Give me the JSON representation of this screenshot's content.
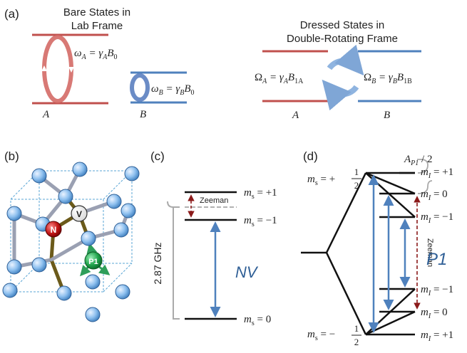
{
  "panel_a": {
    "label": "(a)",
    "lab": {
      "title_line1": "Bare States in",
      "title_line2": "Lab Frame",
      "level_a": "A",
      "level_b": "B",
      "eq_a": {
        "lhs": "ω",
        "lhs_sub": "A",
        "mid": " = γ",
        "mid_sub": "A",
        "rhs": "B",
        "rhs_sub": "0"
      },
      "eq_b": {
        "lhs": "ω",
        "lhs_sub": "B",
        "mid": " = γ",
        "mid_sub": "B",
        "rhs": "B",
        "rhs_sub": "0"
      }
    },
    "dressed": {
      "title_line1": "Dressed States in",
      "title_line2": "Double-Rotating Frame",
      "level_a": "A",
      "level_b": "B",
      "eq_a": {
        "lhs": "Ω",
        "lhs_sub": "A",
        "mid": " = γ",
        "mid_sub": "A",
        "rhs": "B",
        "rhs_sub": "1A"
      },
      "eq_b": {
        "lhs": "Ω",
        "lhs_sub": "B",
        "mid": " = γ",
        "mid_sub": "B",
        "rhs": "B",
        "rhs_sub": "1B"
      }
    }
  },
  "panel_b": {
    "label": "(b)",
    "atom_v": "V",
    "atom_n": "N",
    "atom_p1": "P1"
  },
  "panel_c": {
    "label": "(c)",
    "zeeman": "Zeeman",
    "gap": "2.87 GHz",
    "title": "NV",
    "ms_plus1": {
      "m": "m",
      "sub": "s",
      "val": " = +1"
    },
    "ms_minus1": {
      "m": "m",
      "sub": "s",
      "val": " = −1"
    },
    "ms_0": {
      "m": "m",
      "sub": "s",
      "val": " = 0"
    }
  },
  "panel_d": {
    "label": "(d)",
    "title": "P1",
    "zeeman": "Zeeman",
    "hf": {
      "a": "A",
      "sub": "P1",
      "rest": " / 2"
    },
    "ms_upper": {
      "m": "m",
      "sub": "s",
      "eq": " = +",
      "num": "1",
      "den": "2"
    },
    "ms_lower": {
      "m": "m",
      "sub": "s",
      "eq": " = −",
      "num": "1",
      "den": "2"
    },
    "mi_labels": [
      {
        "m": "m",
        "sub": "I",
        "val": " = +1"
      },
      {
        "m": "m",
        "sub": "I",
        "val": " = 0"
      },
      {
        "m": "m",
        "sub": "I",
        "val": " = −1"
      },
      {
        "m": "m",
        "sub": "I",
        "val": " = −1"
      },
      {
        "m": "m",
        "sub": "I",
        "val": " = 0"
      },
      {
        "m": "m",
        "sub": "I",
        "val": " = +1"
      }
    ]
  },
  "colors": {
    "red": "#c0504d",
    "red_light": "#e8a8a3",
    "blue": "#4f81bd",
    "blue_light": "#9dbbe3",
    "dark_red": "#8b1a1a",
    "green": "#2e9e5a",
    "navy": "#2f5f96"
  }
}
